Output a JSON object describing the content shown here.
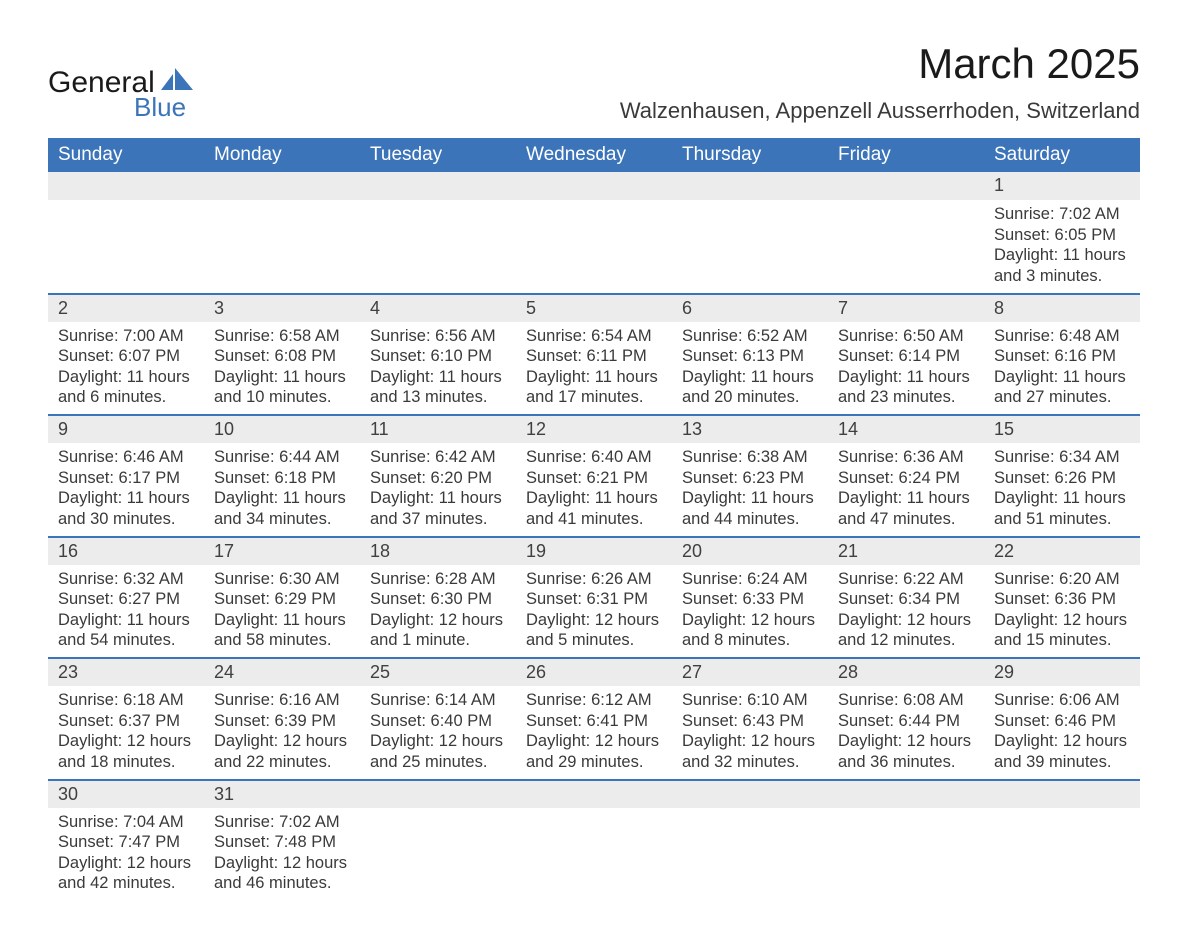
{
  "logo": {
    "text_main": "General",
    "text_sub": "Blue",
    "shape_color": "#3b74b9"
  },
  "title": "March 2025",
  "location": "Walzenhausen, Appenzell Ausserrhoden, Switzerland",
  "colors": {
    "header_bg": "#3b74b9",
    "header_text": "#ffffff",
    "daynum_bg": "#ececec",
    "row_divider": "#3b74b9",
    "body_text": "#3a3a3a"
  },
  "day_headers": [
    "Sunday",
    "Monday",
    "Tuesday",
    "Wednesday",
    "Thursday",
    "Friday",
    "Saturday"
  ],
  "weeks": [
    [
      null,
      null,
      null,
      null,
      null,
      null,
      {
        "n": "1",
        "sunrise": "7:02 AM",
        "sunset": "6:05 PM",
        "daylight": "11 hours and 3 minutes."
      }
    ],
    [
      {
        "n": "2",
        "sunrise": "7:00 AM",
        "sunset": "6:07 PM",
        "daylight": "11 hours and 6 minutes."
      },
      {
        "n": "3",
        "sunrise": "6:58 AM",
        "sunset": "6:08 PM",
        "daylight": "11 hours and 10 minutes."
      },
      {
        "n": "4",
        "sunrise": "6:56 AM",
        "sunset": "6:10 PM",
        "daylight": "11 hours and 13 minutes."
      },
      {
        "n": "5",
        "sunrise": "6:54 AM",
        "sunset": "6:11 PM",
        "daylight": "11 hours and 17 minutes."
      },
      {
        "n": "6",
        "sunrise": "6:52 AM",
        "sunset": "6:13 PM",
        "daylight": "11 hours and 20 minutes."
      },
      {
        "n": "7",
        "sunrise": "6:50 AM",
        "sunset": "6:14 PM",
        "daylight": "11 hours and 23 minutes."
      },
      {
        "n": "8",
        "sunrise": "6:48 AM",
        "sunset": "6:16 PM",
        "daylight": "11 hours and 27 minutes."
      }
    ],
    [
      {
        "n": "9",
        "sunrise": "6:46 AM",
        "sunset": "6:17 PM",
        "daylight": "11 hours and 30 minutes."
      },
      {
        "n": "10",
        "sunrise": "6:44 AM",
        "sunset": "6:18 PM",
        "daylight": "11 hours and 34 minutes."
      },
      {
        "n": "11",
        "sunrise": "6:42 AM",
        "sunset": "6:20 PM",
        "daylight": "11 hours and 37 minutes."
      },
      {
        "n": "12",
        "sunrise": "6:40 AM",
        "sunset": "6:21 PM",
        "daylight": "11 hours and 41 minutes."
      },
      {
        "n": "13",
        "sunrise": "6:38 AM",
        "sunset": "6:23 PM",
        "daylight": "11 hours and 44 minutes."
      },
      {
        "n": "14",
        "sunrise": "6:36 AM",
        "sunset": "6:24 PM",
        "daylight": "11 hours and 47 minutes."
      },
      {
        "n": "15",
        "sunrise": "6:34 AM",
        "sunset": "6:26 PM",
        "daylight": "11 hours and 51 minutes."
      }
    ],
    [
      {
        "n": "16",
        "sunrise": "6:32 AM",
        "sunset": "6:27 PM",
        "daylight": "11 hours and 54 minutes."
      },
      {
        "n": "17",
        "sunrise": "6:30 AM",
        "sunset": "6:29 PM",
        "daylight": "11 hours and 58 minutes."
      },
      {
        "n": "18",
        "sunrise": "6:28 AM",
        "sunset": "6:30 PM",
        "daylight": "12 hours and 1 minute."
      },
      {
        "n": "19",
        "sunrise": "6:26 AM",
        "sunset": "6:31 PM",
        "daylight": "12 hours and 5 minutes."
      },
      {
        "n": "20",
        "sunrise": "6:24 AM",
        "sunset": "6:33 PM",
        "daylight": "12 hours and 8 minutes."
      },
      {
        "n": "21",
        "sunrise": "6:22 AM",
        "sunset": "6:34 PM",
        "daylight": "12 hours and 12 minutes."
      },
      {
        "n": "22",
        "sunrise": "6:20 AM",
        "sunset": "6:36 PM",
        "daylight": "12 hours and 15 minutes."
      }
    ],
    [
      {
        "n": "23",
        "sunrise": "6:18 AM",
        "sunset": "6:37 PM",
        "daylight": "12 hours and 18 minutes."
      },
      {
        "n": "24",
        "sunrise": "6:16 AM",
        "sunset": "6:39 PM",
        "daylight": "12 hours and 22 minutes."
      },
      {
        "n": "25",
        "sunrise": "6:14 AM",
        "sunset": "6:40 PM",
        "daylight": "12 hours and 25 minutes."
      },
      {
        "n": "26",
        "sunrise": "6:12 AM",
        "sunset": "6:41 PM",
        "daylight": "12 hours and 29 minutes."
      },
      {
        "n": "27",
        "sunrise": "6:10 AM",
        "sunset": "6:43 PM",
        "daylight": "12 hours and 32 minutes."
      },
      {
        "n": "28",
        "sunrise": "6:08 AM",
        "sunset": "6:44 PM",
        "daylight": "12 hours and 36 minutes."
      },
      {
        "n": "29",
        "sunrise": "6:06 AM",
        "sunset": "6:46 PM",
        "daylight": "12 hours and 39 minutes."
      }
    ],
    [
      {
        "n": "30",
        "sunrise": "7:04 AM",
        "sunset": "7:47 PM",
        "daylight": "12 hours and 42 minutes."
      },
      {
        "n": "31",
        "sunrise": "7:02 AM",
        "sunset": "7:48 PM",
        "daylight": "12 hours and 46 minutes."
      },
      null,
      null,
      null,
      null,
      null
    ]
  ],
  "labels": {
    "sunrise": "Sunrise:",
    "sunset": "Sunset:",
    "daylight": "Daylight:"
  }
}
